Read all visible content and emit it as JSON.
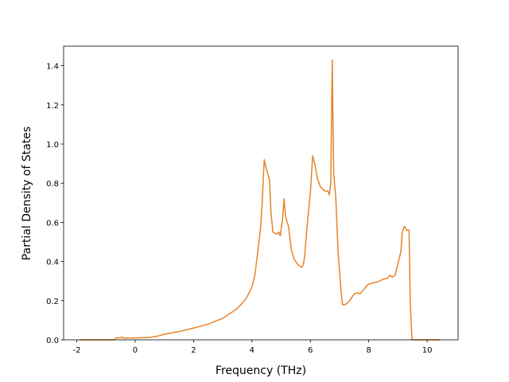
{
  "chart_data": {
    "type": "line",
    "xlabel": "Frequency (THz)",
    "ylabel": "Partial Density of States",
    "color": "#e8832a",
    "x": [
      -1.9,
      -0.7,
      -0.65,
      -0.5,
      -0.45,
      -0.4,
      0,
      0.5,
      0.8,
      1.0,
      1.5,
      2.0,
      2.5,
      3.0,
      3.5,
      3.8,
      4.0,
      4.1,
      4.2,
      4.3,
      4.35,
      4.42,
      4.5,
      4.6,
      4.65,
      4.72,
      4.85,
      4.92,
      4.97,
      5.05,
      5.1,
      5.15,
      5.25,
      5.35,
      5.45,
      5.6,
      5.7,
      5.75,
      5.8,
      5.9,
      6.0,
      6.08,
      6.15,
      6.25,
      6.35,
      6.5,
      6.6,
      6.65,
      6.7,
      6.75,
      6.8,
      6.87,
      6.95,
      7.05,
      7.1,
      7.2,
      7.35,
      7.5,
      7.6,
      7.7,
      7.85,
      7.95,
      8.1,
      8.3,
      8.5,
      8.65,
      8.72,
      8.8,
      8.9,
      9.0,
      9.1,
      9.15,
      9.22,
      9.3,
      9.38,
      9.42,
      9.48,
      10.45
    ],
    "values": [
      0,
      0,
      0.01,
      0.01,
      0.015,
      0.008,
      0.01,
      0.012,
      0.02,
      0.028,
      0.042,
      0.06,
      0.08,
      0.11,
      0.16,
      0.21,
      0.27,
      0.33,
      0.45,
      0.58,
      0.7,
      0.92,
      0.87,
      0.82,
      0.65,
      0.55,
      0.54,
      0.55,
      0.53,
      0.62,
      0.72,
      0.63,
      0.58,
      0.46,
      0.41,
      0.38,
      0.37,
      0.38,
      0.42,
      0.6,
      0.75,
      0.94,
      0.9,
      0.82,
      0.78,
      0.76,
      0.76,
      0.74,
      0.8,
      1.43,
      0.85,
      0.73,
      0.45,
      0.25,
      0.18,
      0.18,
      0.2,
      0.235,
      0.24,
      0.235,
      0.26,
      0.28,
      0.29,
      0.295,
      0.31,
      0.315,
      0.33,
      0.32,
      0.33,
      0.39,
      0.45,
      0.55,
      0.58,
      0.56,
      0.56,
      0.2,
      0,
      0
    ],
    "xlim": [
      -2.45,
      11.06
    ],
    "ylim": [
      0,
      1.5
    ],
    "xticks": [
      -2,
      0,
      2,
      4,
      6,
      8,
      10
    ],
    "yticks": [
      {
        "value": 0,
        "label": "0.0"
      },
      {
        "value": 0.2,
        "label": "0.2"
      },
      {
        "value": 0.4,
        "label": "0.4"
      },
      {
        "value": 0.6,
        "label": "0.6"
      },
      {
        "value": 0.8,
        "label": "0.8"
      },
      {
        "value": 1.0,
        "label": "1.0"
      },
      {
        "value": 1.2,
        "label": "1.2"
      },
      {
        "value": 1.4,
        "label": "1.4"
      }
    ]
  }
}
